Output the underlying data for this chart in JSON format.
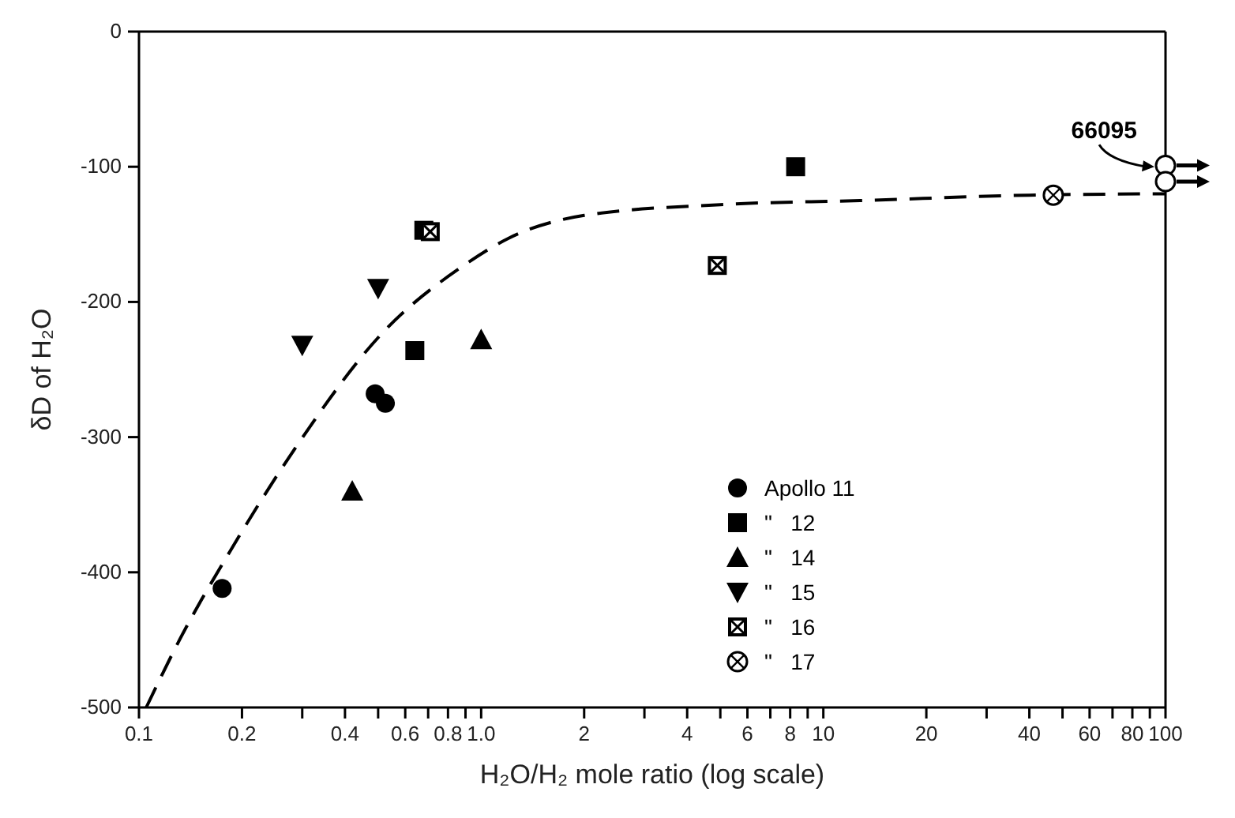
{
  "chart_data": {
    "type": "scatter",
    "xlabel": "H₂O/H₂  mole ratio (log scale)",
    "ylabel": "δD of H₂O",
    "log": "x",
    "xlim": [
      0.1,
      100
    ],
    "xticks": [
      {
        "value": 0.1,
        "label": "0.1"
      },
      0.2,
      {
        "value": 0.3,
        "label": null
      },
      0.4,
      {
        "value": 0.5,
        "label": null
      },
      0.6,
      {
        "value": 0.7,
        "label": null
      },
      0.8,
      {
        "value": 0.9,
        "label": null
      },
      {
        "value": 1,
        "label": "1.0"
      },
      2,
      {
        "value": 3,
        "label": null
      },
      4,
      {
        "value": 5,
        "label": null
      },
      6,
      {
        "value": 7,
        "label": null
      },
      8,
      {
        "value": 9,
        "label": null
      },
      10,
      20,
      {
        "value": 30,
        "label": null
      },
      40,
      {
        "value": 50,
        "label": null
      },
      60,
      {
        "value": 70,
        "label": null
      },
      80,
      {
        "value": 90,
        "label": null
      },
      100
    ],
    "ylim": [
      -500,
      0
    ],
    "yticks": [
      -500,
      -400,
      -300,
      -200,
      -100,
      0
    ],
    "legend": "bottom right",
    "annotations": [
      {
        "text": "66095",
        "x": 100,
        "y": -100
      }
    ],
    "series": [
      {
        "name": "Apollo 11",
        "color": "#000000",
        "marker": "circle",
        "x": [
          0.175,
          0.49,
          0.525
        ],
        "values": [
          -412,
          -268,
          -275
        ]
      },
      {
        "name": "\"   12",
        "color": "#000000",
        "marker": "square",
        "x": [
          0.64,
          0.68,
          8.3
        ],
        "values": [
          -236,
          -147,
          -100
        ]
      },
      {
        "name": "\"   14",
        "color": "#000000",
        "marker": "triangle",
        "x": [
          0.42,
          1.0
        ],
        "values": [
          -340,
          -228
        ]
      },
      {
        "name": "\"   15",
        "color": "#000000",
        "marker": "triangle-down",
        "x": [
          0.3,
          0.5
        ],
        "values": [
          -232,
          -190
        ]
      },
      {
        "name": "\"   16",
        "color": "#000000",
        "marker": "square-cross",
        "x": [
          0.71,
          4.9
        ],
        "values": [
          -148,
          -173
        ]
      },
      {
        "name": "\"   17",
        "color": "#000000",
        "marker": "circle-cross",
        "x": [
          47
        ],
        "values": [
          -121
        ]
      },
      {
        "color": "#000000",
        "marker": "circle-open",
        "x": [
          100,
          100
        ],
        "values": [
          -99,
          -111
        ]
      },
      {
        "type": "line",
        "color": "#000000",
        "line_style": "dashed",
        "marker": "none",
        "x": [
          0.105,
          0.132,
          0.185,
          0.29,
          0.51,
          0.89,
          1.2,
          2,
          5,
          12.8,
          40,
          100
        ],
        "values": [
          -500,
          -449,
          -384,
          -306,
          -224,
          -173,
          -153,
          -136,
          -128,
          -125,
          -121,
          -120
        ]
      }
    ]
  }
}
